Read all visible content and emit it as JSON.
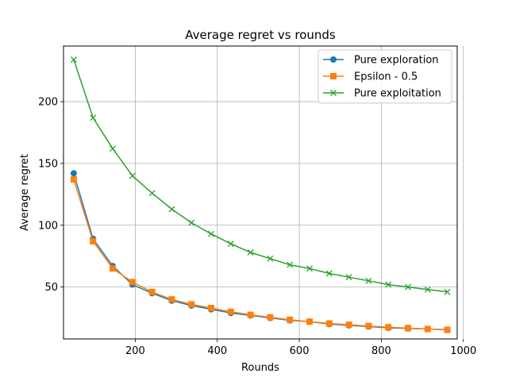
{
  "chart_data": {
    "type": "line",
    "title": "Average regret vs rounds",
    "xlabel": "Rounds",
    "ylabel": "Average regret",
    "xlim": [
      25,
      985
    ],
    "ylim": [
      8,
      245
    ],
    "xticks": [
      200,
      400,
      600,
      800,
      1000
    ],
    "yticks": [
      50,
      100,
      150,
      200
    ],
    "grid": true,
    "legend_position": "top-right",
    "x": [
      50,
      97,
      145,
      193,
      241,
      289,
      337,
      385,
      433,
      481,
      529,
      577,
      625,
      673,
      721,
      769,
      817,
      865,
      913,
      961
    ],
    "series": [
      {
        "name": "Pure exploration",
        "color": "#1f77b4",
        "marker": "circle",
        "values": [
          142,
          89,
          67,
          52,
          45,
          39,
          35,
          32,
          29,
          27,
          25,
          23,
          22,
          20,
          19,
          18,
          17,
          16.5,
          16,
          15.5
        ]
      },
      {
        "name": "Epsilon - 0.5",
        "color": "#ff7f0e",
        "marker": "square",
        "values": [
          137,
          87,
          65,
          54,
          46,
          40,
          36,
          33,
          30,
          27.5,
          25.5,
          23.5,
          22,
          20.5,
          19.5,
          18.5,
          17.5,
          16.8,
          16,
          15.3
        ]
      },
      {
        "name": "Pure exploitation",
        "color": "#2ca02c",
        "marker": "x",
        "values": [
          234,
          187,
          162,
          140,
          126,
          113,
          102,
          93,
          85,
          78,
          73,
          68,
          65,
          61,
          58,
          55,
          52,
          50,
          48,
          46
        ]
      }
    ]
  }
}
